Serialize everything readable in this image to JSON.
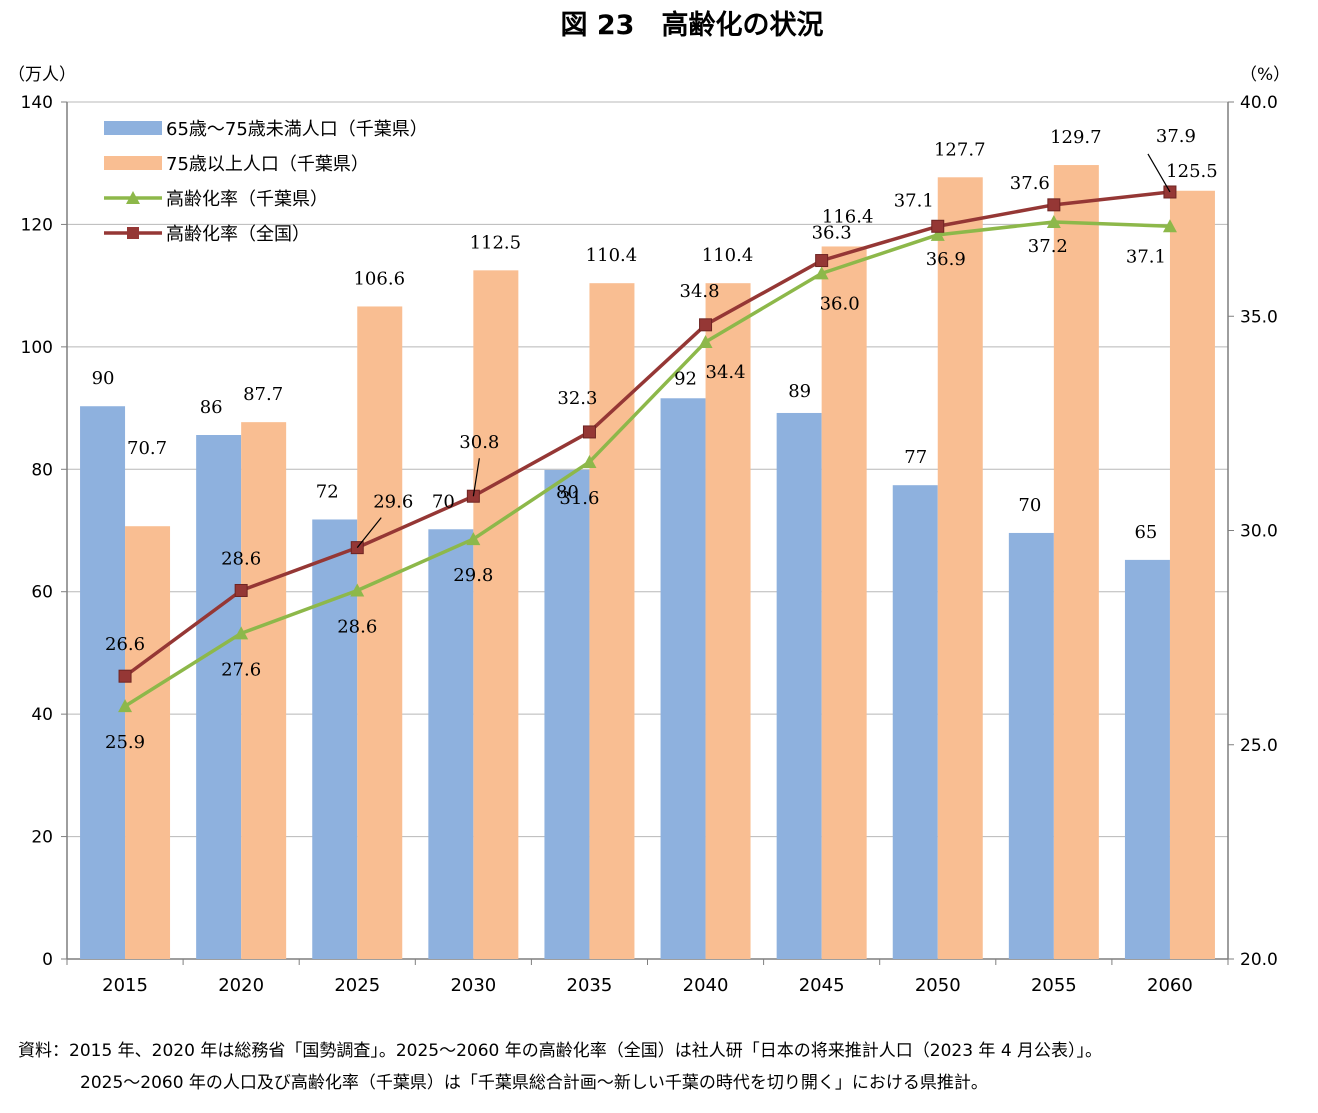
{
  "chart_data": {
    "type": "bar+line",
    "title": "図 23　高齢化の状況",
    "left_axis_unit": "（万人）",
    "right_axis_unit": "（%）",
    "categories": [
      "2015",
      "2020",
      "2025",
      "2030",
      "2035",
      "2040",
      "2045",
      "2050",
      "2055",
      "2060"
    ],
    "left_ylim": [
      0,
      140
    ],
    "left_ticks": [
      "0",
      "20",
      "40",
      "60",
      "80",
      "100",
      "120",
      "140"
    ],
    "right_ylim": [
      20,
      40
    ],
    "right_ticks": [
      "20.0",
      "25.0",
      "30.0",
      "35.0",
      "40.0"
    ],
    "gridlines": true,
    "legend_position": "top-left",
    "series": [
      {
        "name": "65歳～75歳未満人口（千葉県）",
        "kind": "bar",
        "axis": "left",
        "color": "#8eb1de",
        "values": [
          90.3,
          85.6,
          71.8,
          70.2,
          79.9,
          91.6,
          89.2,
          77.4,
          69.6,
          65.2
        ],
        "labels": [
          "90",
          "86",
          "72",
          "70",
          "80",
          "92",
          "89",
          "77",
          "70",
          "65"
        ]
      },
      {
        "name": "75歳以上人口（千葉県）",
        "kind": "bar",
        "axis": "left",
        "color": "#f9be92",
        "values": [
          70.7,
          87.7,
          106.6,
          112.5,
          110.4,
          110.4,
          116.4,
          127.7,
          129.7,
          125.5
        ],
        "labels": [
          "70.7",
          "87.7",
          "106.6",
          "112.5",
          "110.4",
          "110.4",
          "116.4",
          "127.7",
          "129.7",
          "125.5"
        ]
      },
      {
        "name": "高齢化率（千葉県）",
        "kind": "line",
        "axis": "right",
        "color": "#8db84a",
        "marker": "triangle",
        "values": [
          25.9,
          27.6,
          28.6,
          29.8,
          31.6,
          34.4,
          36.0,
          36.9,
          37.2,
          37.1
        ],
        "labels": [
          "25.9",
          "27.6",
          "28.6",
          "29.8",
          "31.6",
          "34.4",
          "36.0",
          "36.9",
          "37.2",
          "37.1"
        ]
      },
      {
        "name": "高齢化率（全国）",
        "kind": "line",
        "axis": "right",
        "color": "#953735",
        "marker": "square",
        "values": [
          26.6,
          28.6,
          29.6,
          30.8,
          32.3,
          34.8,
          36.3,
          37.1,
          37.6,
          37.9
        ],
        "labels": [
          "26.6",
          "28.6",
          "29.6",
          "30.8",
          "32.3",
          "34.8",
          "36.3",
          "37.1",
          "37.6",
          "37.9"
        ]
      }
    ]
  },
  "notes": {
    "line1": "資料：2015 年、2020 年は総務省「国勢調査」。2025～2060 年の高齢化率（全国）は社人研「日本の将来推計人口（2023 年 4 月公表）」。",
    "line2": "2025～2060 年の人口及び高齢化率（千葉県）は「千葉県総合計画～新しい千葉の時代を切り開く」における県推計。"
  }
}
